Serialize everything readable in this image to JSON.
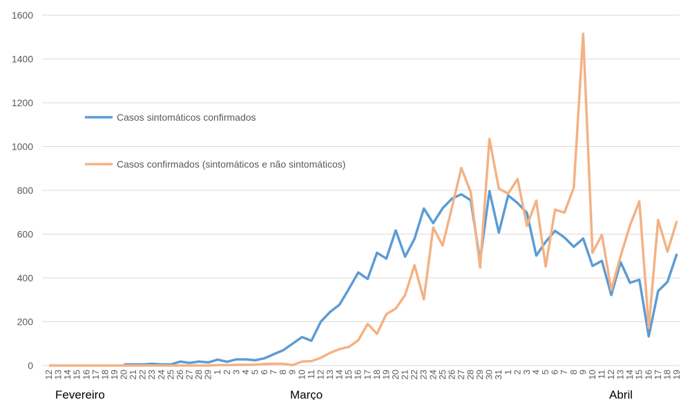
{
  "chart_data": {
    "type": "line",
    "categories": [
      "12",
      "13",
      "14",
      "15",
      "16",
      "17",
      "18",
      "19",
      "20",
      "21",
      "22",
      "23",
      "24",
      "25",
      "26",
      "27",
      "28",
      "29",
      "1",
      "2",
      "3",
      "4",
      "5",
      "6",
      "7",
      "8",
      "9",
      "10",
      "11",
      "12",
      "13",
      "14",
      "15",
      "16",
      "17",
      "18",
      "19",
      "20",
      "21",
      "22",
      "23",
      "24",
      "25",
      "26",
      "27",
      "28",
      "29",
      "30",
      "31",
      "1",
      "2",
      "3",
      "4",
      "5",
      "6",
      "7",
      "8",
      "9",
      "10",
      "11",
      "12",
      "13",
      "14",
      "15",
      "16",
      "17",
      "18",
      "19"
    ],
    "months": [
      "Fevereiro",
      "Março",
      "Abril"
    ],
    "series": [
      {
        "name": "Casos sintomáticos confirmados",
        "color": "#5b9bd5",
        "values": [
          null,
          null,
          null,
          null,
          null,
          null,
          null,
          null,
          5,
          5,
          5,
          8,
          5,
          5,
          18,
          12,
          18,
          14,
          27,
          17,
          28,
          28,
          24,
          33,
          52,
          70,
          100,
          130,
          113,
          200,
          245,
          278,
          350,
          425,
          395,
          515,
          488,
          617,
          497,
          578,
          717,
          650,
          718,
          762,
          782,
          755,
          478,
          797,
          607,
          777,
          742,
          697,
          502,
          565,
          615,
          585,
          542,
          580,
          455,
          478,
          322,
          472,
          378,
          392,
          133,
          340,
          382,
          510
        ]
      },
      {
        "name": "Casos confirmados (sintomáticos e não sintomáticos)",
        "color": "#f4b183",
        "values": [
          0,
          0,
          0,
          0,
          0,
          0,
          0,
          0,
          0,
          0,
          0,
          0,
          0,
          0,
          0,
          0,
          0,
          0,
          2,
          2,
          3,
          3,
          4,
          7,
          8,
          8,
          2,
          18,
          20,
          35,
          58,
          75,
          85,
          115,
          190,
          145,
          235,
          260,
          322,
          458,
          302,
          630,
          548,
          722,
          902,
          792,
          447,
          1035,
          808,
          785,
          852,
          638,
          753,
          452,
          712,
          698,
          812,
          1515,
          515,
          597,
          345,
          500,
          640,
          750,
          173,
          665,
          520,
          660
        ]
      }
    ],
    "ylim": [
      0,
      1600
    ],
    "yticks": [
      0,
      200,
      400,
      600,
      800,
      1000,
      1200,
      1400,
      1600
    ],
    "grid": true,
    "legend": "upper left"
  }
}
